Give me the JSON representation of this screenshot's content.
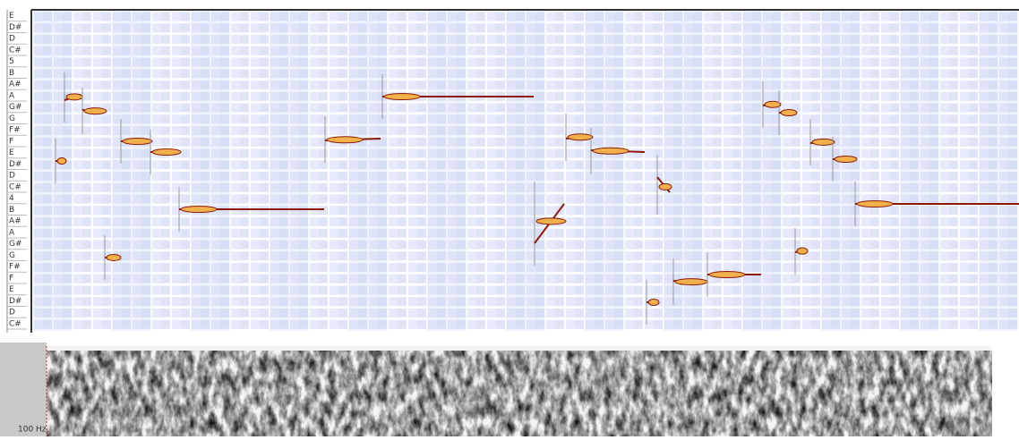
{
  "pitch_labels": [
    "E",
    "D#",
    "D",
    "C#",
    "5",
    "B",
    "A#",
    "A",
    "G#",
    "G",
    "F#",
    "F",
    "E",
    "D#",
    "D",
    "C#",
    "4",
    "B",
    "A#",
    "A",
    "G#",
    "G",
    "F#",
    "F",
    "E",
    "D#",
    "D",
    "C#"
  ],
  "spectrogram": {
    "label": "100 Hz"
  }
}
